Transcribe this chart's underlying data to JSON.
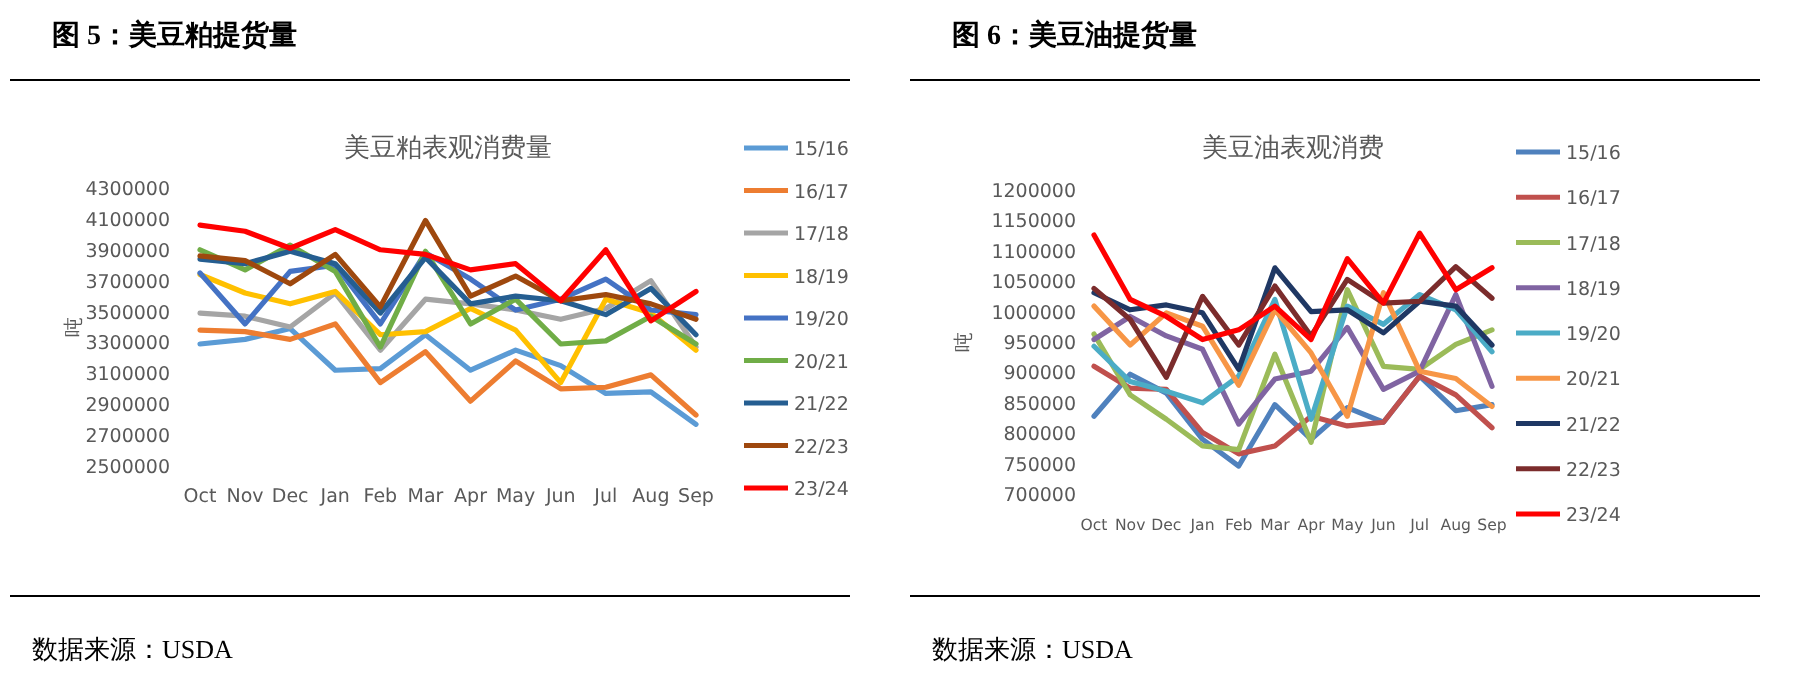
{
  "chart_data": [
    {
      "type": "line",
      "title": "美豆粕表观消费量",
      "ylabel": "吨",
      "annotations": [
        "图 5：美豆粕提货量",
        "数据来源：USDA"
      ],
      "categories": [
        "Oct",
        "Nov",
        "Dec",
        "Jan",
        "Feb",
        "Mar",
        "Apr",
        "May",
        "Jun",
        "Jul",
        "Aug",
        "Sep"
      ],
      "ylim": [
        2500000,
        4300000
      ],
      "yticks": [
        2500000,
        2700000,
        2900000,
        3100000,
        3300000,
        3500000,
        3700000,
        3900000,
        4100000,
        4300000
      ],
      "grid": false,
      "legend": "right",
      "marker": "none",
      "series": [
        {
          "name": "15/16",
          "color": "#5b9bd5",
          "values": [
            3290000,
            3320000,
            3390000,
            3120000,
            3130000,
            3350000,
            3120000,
            3250000,
            3150000,
            2970000,
            2980000,
            2770000
          ]
        },
        {
          "name": "16/17",
          "color": "#ed7d31",
          "values": [
            3380000,
            3370000,
            3320000,
            3420000,
            3040000,
            3240000,
            2920000,
            3180000,
            3000000,
            3010000,
            3090000,
            2830000
          ]
        },
        {
          "name": "17/18",
          "color": "#a5a5a5",
          "values": [
            3490000,
            3470000,
            3400000,
            3620000,
            3250000,
            3580000,
            3550000,
            3510000,
            3450000,
            3520000,
            3700000,
            3270000
          ]
        },
        {
          "name": "18/19",
          "color": "#ffc000",
          "values": [
            3740000,
            3620000,
            3550000,
            3630000,
            3350000,
            3370000,
            3520000,
            3380000,
            3040000,
            3580000,
            3490000,
            3250000
          ]
        },
        {
          "name": "19/20",
          "color": "#4472c4",
          "values": [
            3750000,
            3420000,
            3760000,
            3800000,
            3420000,
            3880000,
            3710000,
            3510000,
            3580000,
            3710000,
            3510000,
            3480000
          ]
        },
        {
          "name": "20/21",
          "color": "#70ad47",
          "values": [
            3900000,
            3770000,
            3930000,
            3760000,
            3270000,
            3890000,
            3420000,
            3580000,
            3290000,
            3310000,
            3470000,
            3290000
          ]
        },
        {
          "name": "21/22",
          "color": "#255e91",
          "values": [
            3840000,
            3810000,
            3890000,
            3810000,
            3490000,
            3850000,
            3550000,
            3600000,
            3570000,
            3480000,
            3650000,
            3350000
          ]
        },
        {
          "name": "22/23",
          "color": "#9e480e",
          "values": [
            3860000,
            3830000,
            3680000,
            3870000,
            3530000,
            4090000,
            3600000,
            3730000,
            3570000,
            3610000,
            3550000,
            3450000
          ]
        },
        {
          "name": "23/24",
          "color": "#ff0000",
          "values": [
            4060000,
            4020000,
            3910000,
            4030000,
            3900000,
            3870000,
            3770000,
            3810000,
            3570000,
            3900000,
            3440000,
            3630000
          ]
        }
      ]
    },
    {
      "type": "line",
      "title": "美豆油表观消费",
      "ylabel": "吨",
      "annotations": [
        "图 6：美豆油提货量",
        "数据来源：USDA"
      ],
      "categories": [
        "Oct",
        "Nov",
        "Dec",
        "Jan",
        "Feb",
        "Mar",
        "Apr",
        "May",
        "Jun",
        "Jul",
        "Aug",
        "Sep"
      ],
      "ylim": [
        700000,
        1200000
      ],
      "yticks": [
        700000,
        750000,
        800000,
        850000,
        900000,
        950000,
        1000000,
        1050000,
        1100000,
        1150000,
        1200000
      ],
      "grid": false,
      "legend": "right",
      "marker": "none",
      "series": [
        {
          "name": "15/16",
          "color": "#4f81bd",
          "values": [
            828000,
            897000,
            866000,
            790000,
            746000,
            847000,
            790000,
            842000,
            818000,
            894000,
            837000,
            847000
          ]
        },
        {
          "name": "16/17",
          "color": "#c0504d",
          "values": [
            910000,
            874000,
            872000,
            801000,
            766000,
            779000,
            828000,
            812000,
            818000,
            894000,
            863000,
            809000
          ]
        },
        {
          "name": "17/18",
          "color": "#9bbb59",
          "values": [
            963000,
            863000,
            823000,
            779000,
            773000,
            930000,
            785000,
            1036000,
            910000,
            905000,
            946000,
            970000
          ]
        },
        {
          "name": "18/19",
          "color": "#8064a2",
          "values": [
            954000,
            992000,
            960000,
            938000,
            815000,
            889000,
            902000,
            974000,
            872000,
            902000,
            1028000,
            877000
          ]
        },
        {
          "name": "19/20",
          "color": "#4bacc6",
          "values": [
            943000,
            885000,
            869000,
            850000,
            894000,
            1020000,
            823000,
            1009000,
            979000,
            1028000,
            1003000,
            934000
          ]
        },
        {
          "name": "20/21",
          "color": "#f79646",
          "values": [
            1009000,
            945000,
            998000,
            976000,
            879000,
            1003000,
            932000,
            828000,
            1031000,
            902000,
            890000,
            844000
          ]
        },
        {
          "name": "21/22",
          "color": "#1f3864",
          "values": [
            1031000,
            1003000,
            1011000,
            998000,
            905000,
            1072000,
            1000000,
            1003000,
            965000,
            1017000,
            1009000,
            945000
          ]
        },
        {
          "name": "22/23",
          "color": "#7b2c2c",
          "values": [
            1038000,
            987000,
            892000,
            1025000,
            945000,
            1042000,
            960000,
            1053000,
            1014000,
            1017000,
            1074000,
            1022000
          ]
        },
        {
          "name": "23/24",
          "color": "#ff0000",
          "values": [
            1126000,
            1020000,
            992000,
            954000,
            970000,
            1009000,
            954000,
            1087000,
            1014000,
            1129000,
            1036000,
            1072000
          ]
        }
      ]
    }
  ]
}
